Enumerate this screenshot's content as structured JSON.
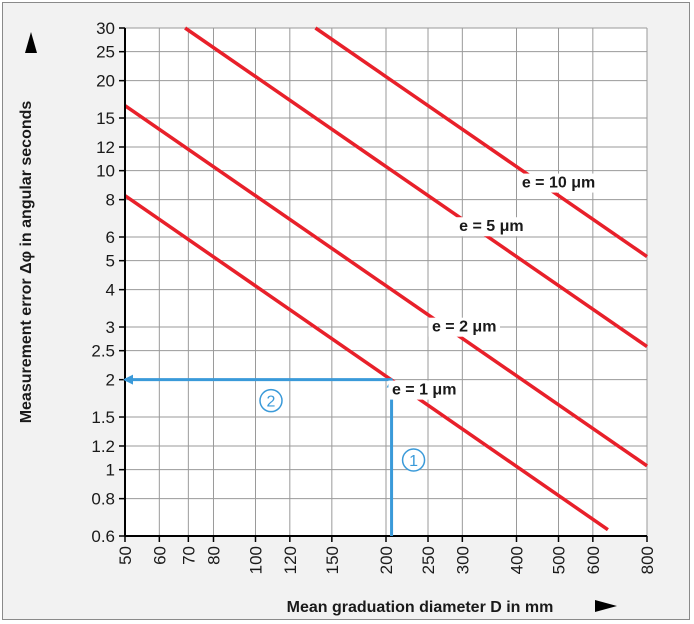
{
  "chart_data": {
    "type": "line",
    "xlabel": "Mean graduation diameter D in mm",
    "ylabel": "Measurement error Δφ in angular seconds",
    "x_scale": "log",
    "y_scale": "log",
    "xlim": [
      50,
      800
    ],
    "ylim": [
      0.6,
      30
    ],
    "x_ticks": [
      50,
      60,
      70,
      80,
      100,
      120,
      150,
      200,
      250,
      300,
      400,
      500,
      600,
      800
    ],
    "y_ticks": [
      0.6,
      0.8,
      1,
      1.2,
      1.5,
      2,
      2.5,
      3,
      4,
      5,
      6,
      8,
      10,
      12,
      15,
      20,
      25,
      30
    ],
    "grid": true,
    "series": [
      {
        "name": "e = 1 μm",
        "e_um": 1,
        "x": [
          50,
          650
        ],
        "y": [
          8.25,
          0.63
        ]
      },
      {
        "name": "e = 2 μm",
        "e_um": 2,
        "x": [
          50,
          800
        ],
        "y": [
          16.5,
          1.03
        ]
      },
      {
        "name": "e = 5 μm",
        "e_um": 5,
        "x": [
          68.8,
          800
        ],
        "y": [
          30,
          2.58
        ]
      },
      {
        "name": "e = 10 μm",
        "e_um": 10,
        "x": [
          137.5,
          800
        ],
        "y": [
          30,
          5.16
        ]
      }
    ],
    "annotations": [
      {
        "label": "1",
        "from": [
          206,
          0.6
        ],
        "to": [
          206,
          2
        ]
      },
      {
        "label": "2",
        "from": [
          206,
          2
        ],
        "to": [
          50,
          2
        ]
      }
    ],
    "colors": {
      "curve": "#e8202a",
      "arrow": "#3a9ad9",
      "grid": "#9a9a9a"
    }
  }
}
